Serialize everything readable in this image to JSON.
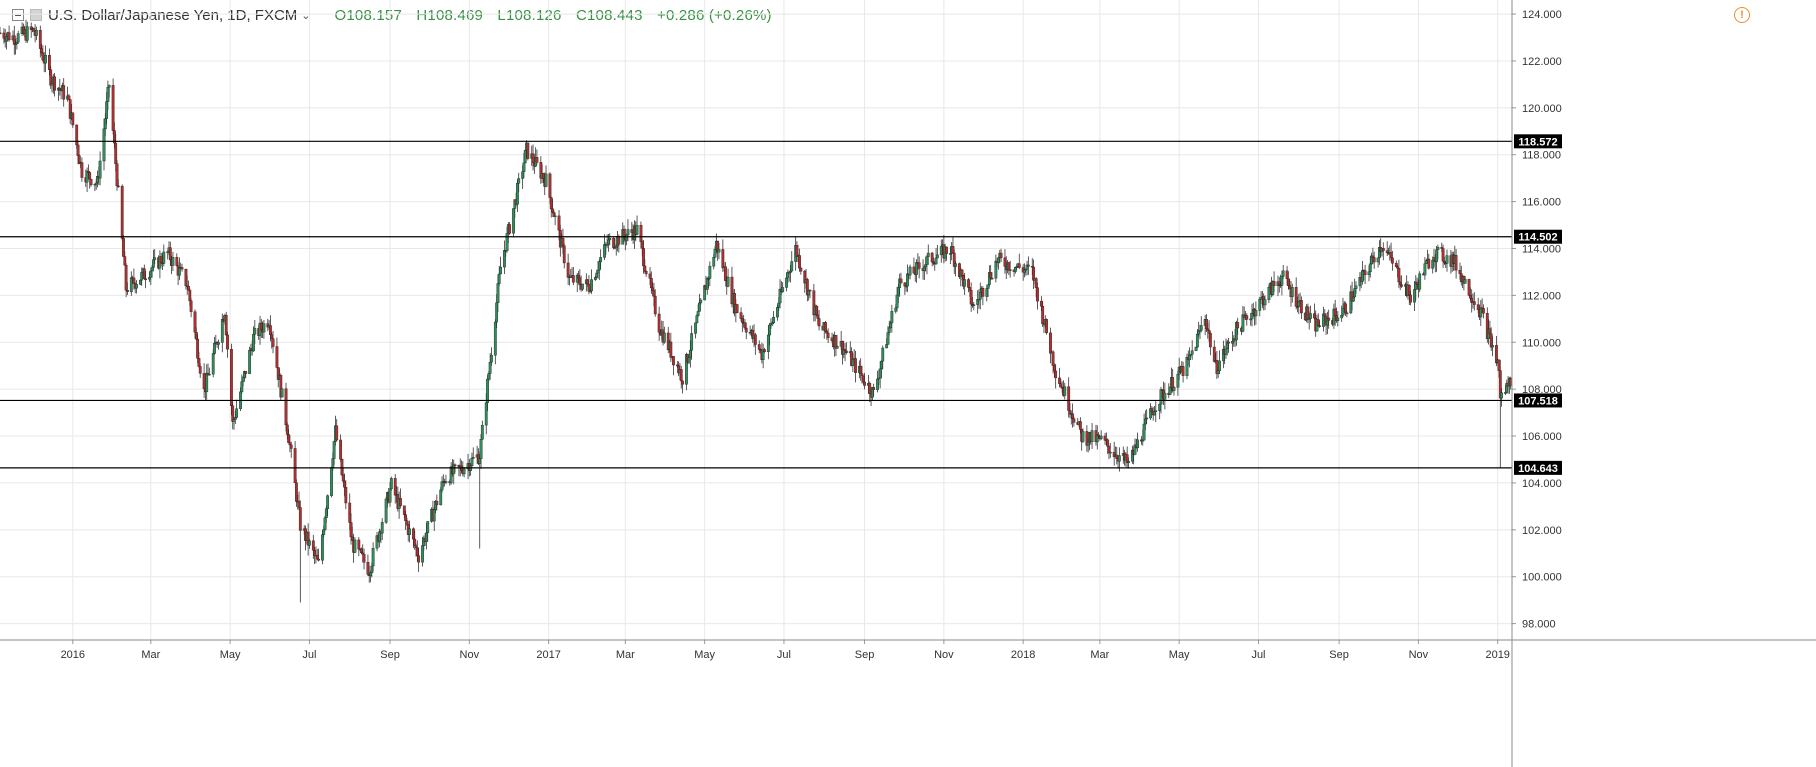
{
  "header": {
    "symbol": "U.S. Dollar/Japanese Yen, 1D, FXCM",
    "open": "O108.157",
    "high": "H108.469",
    "low": "L108.126",
    "close": "C108.443",
    "change": "+0.286 (+0.26%)"
  },
  "icons": {
    "collapse": "minus-square-icon",
    "series": "grey-square-icon",
    "chevron": "chevron-down-icon",
    "alert": "warning-circle-icon"
  },
  "colors": {
    "up": "#2f8f5b",
    "down": "#b32f2f",
    "wick": "#333333",
    "level_line": "#000000",
    "grid": "#e8e8e8",
    "ohlc_text": "#3a9144",
    "alert": "#f08c2a"
  },
  "chart_data": {
    "type": "candlestick",
    "title": "U.S. Dollar/Japanese Yen, 1D, FXCM",
    "ylim": [
      97.3,
      124.6
    ],
    "x_range": [
      "2015-11-06",
      "2019-01-12"
    ],
    "grid": true,
    "yticks": [
      "98.000",
      "100.000",
      "102.000",
      "104.000",
      "106.000",
      "108.000",
      "110.000",
      "112.000",
      "114.000",
      "116.000",
      "118.000",
      "120.000",
      "122.000",
      "124.000"
    ],
    "xticks": [
      {
        "label": "2016",
        "date": "2016-01-01"
      },
      {
        "label": "Mar",
        "date": "2016-03-01"
      },
      {
        "label": "May",
        "date": "2016-05-01"
      },
      {
        "label": "Jul",
        "date": "2016-07-01"
      },
      {
        "label": "Sep",
        "date": "2016-09-01"
      },
      {
        "label": "Nov",
        "date": "2016-11-01"
      },
      {
        "label": "2017",
        "date": "2017-01-01"
      },
      {
        "label": "Mar",
        "date": "2017-03-01"
      },
      {
        "label": "May",
        "date": "2017-05-01"
      },
      {
        "label": "Jul",
        "date": "2017-07-01"
      },
      {
        "label": "Sep",
        "date": "2017-09-01"
      },
      {
        "label": "Nov",
        "date": "2017-11-01"
      },
      {
        "label": "2018",
        "date": "2018-01-01"
      },
      {
        "label": "Mar",
        "date": "2018-03-01"
      },
      {
        "label": "May",
        "date": "2018-05-01"
      },
      {
        "label": "Jul",
        "date": "2018-07-01"
      },
      {
        "label": "Sep",
        "date": "2018-09-01"
      },
      {
        "label": "Nov",
        "date": "2018-11-01"
      },
      {
        "label": "2019",
        "date": "2019-01-01"
      }
    ],
    "levels": [
      {
        "value": 118.572,
        "label": "118.572"
      },
      {
        "value": 114.502,
        "label": "114.502"
      },
      {
        "value": 107.518,
        "label": "107.518"
      },
      {
        "value": 104.643,
        "label": "104.643"
      }
    ],
    "close_path": [
      {
        "date": "2015-11-06",
        "close": 123.2
      },
      {
        "date": "2015-11-18",
        "close": 123.0
      },
      {
        "date": "2015-12-02",
        "close": 123.3
      },
      {
        "date": "2015-12-15",
        "close": 121.3
      },
      {
        "date": "2015-12-28",
        "close": 120.4
      },
      {
        "date": "2016-01-08",
        "close": 117.3
      },
      {
        "date": "2016-01-20",
        "close": 116.8
      },
      {
        "date": "2016-01-29",
        "close": 121.0
      },
      {
        "date": "2016-02-11",
        "close": 112.3
      },
      {
        "date": "2016-02-25",
        "close": 112.9
      },
      {
        "date": "2016-03-14",
        "close": 113.8
      },
      {
        "date": "2016-03-29",
        "close": 112.5
      },
      {
        "date": "2016-04-11",
        "close": 107.9
      },
      {
        "date": "2016-04-27",
        "close": 111.4
      },
      {
        "date": "2016-05-03",
        "close": 106.5
      },
      {
        "date": "2016-05-19",
        "close": 110.2
      },
      {
        "date": "2016-05-31",
        "close": 111.0
      },
      {
        "date": "2016-06-15",
        "close": 106.0
      },
      {
        "date": "2016-06-24",
        "close": 102.2
      },
      {
        "date": "2016-07-08",
        "close": 100.5
      },
      {
        "date": "2016-07-21",
        "close": 106.2
      },
      {
        "date": "2016-08-03",
        "close": 101.4
      },
      {
        "date": "2016-08-16",
        "close": 100.3
      },
      {
        "date": "2016-09-02",
        "close": 103.9
      },
      {
        "date": "2016-09-23",
        "close": 100.9
      },
      {
        "date": "2016-10-13",
        "close": 104.2
      },
      {
        "date": "2016-10-28",
        "close": 104.7
      },
      {
        "date": "2016-11-09",
        "close": 105.2
      },
      {
        "date": "2016-11-25",
        "close": 113.2
      },
      {
        "date": "2016-12-15",
        "close": 118.2
      },
      {
        "date": "2016-12-30",
        "close": 116.9
      },
      {
        "date": "2017-01-17",
        "close": 112.7
      },
      {
        "date": "2017-02-01",
        "close": 112.4
      },
      {
        "date": "2017-02-15",
        "close": 114.2
      },
      {
        "date": "2017-03-10",
        "close": 114.8
      },
      {
        "date": "2017-03-27",
        "close": 110.7
      },
      {
        "date": "2017-04-14",
        "close": 108.5
      },
      {
        "date": "2017-05-10",
        "close": 114.2
      },
      {
        "date": "2017-05-24",
        "close": 111.6
      },
      {
        "date": "2017-06-14",
        "close": 109.5
      },
      {
        "date": "2017-07-10",
        "close": 114.0
      },
      {
        "date": "2017-07-28",
        "close": 110.7
      },
      {
        "date": "2017-08-15",
        "close": 109.8
      },
      {
        "date": "2017-09-08",
        "close": 107.8
      },
      {
        "date": "2017-09-28",
        "close": 112.5
      },
      {
        "date": "2017-10-20",
        "close": 113.5
      },
      {
        "date": "2017-11-06",
        "close": 114.0
      },
      {
        "date": "2017-11-24",
        "close": 111.5
      },
      {
        "date": "2017-12-12",
        "close": 113.5
      },
      {
        "date": "2018-01-08",
        "close": 113.0
      },
      {
        "date": "2018-01-26",
        "close": 108.8
      },
      {
        "date": "2018-02-15",
        "close": 106.0
      },
      {
        "date": "2018-03-02",
        "close": 105.8
      },
      {
        "date": "2018-03-23",
        "close": 104.8
      },
      {
        "date": "2018-04-13",
        "close": 107.4
      },
      {
        "date": "2018-05-08",
        "close": 109.1
      },
      {
        "date": "2018-05-21",
        "close": 111.1
      },
      {
        "date": "2018-05-29",
        "close": 108.9
      },
      {
        "date": "2018-06-15",
        "close": 110.6
      },
      {
        "date": "2018-07-19",
        "close": 112.8
      },
      {
        "date": "2018-08-13",
        "close": 110.7
      },
      {
        "date": "2018-09-04",
        "close": 111.3
      },
      {
        "date": "2018-10-04",
        "close": 114.2
      },
      {
        "date": "2018-10-26",
        "close": 111.9
      },
      {
        "date": "2018-11-12",
        "close": 113.8
      },
      {
        "date": "2018-11-28",
        "close": 113.5
      },
      {
        "date": "2018-12-20",
        "close": 111.2
      },
      {
        "date": "2019-01-02",
        "close": 108.9
      },
      {
        "date": "2019-01-03",
        "close": 107.6
      },
      {
        "date": "2019-01-11",
        "close": 108.4
      }
    ],
    "annotations": [
      {
        "date": "2019-01-03",
        "low": 104.643,
        "note": "flash-crash wick"
      },
      {
        "date": "2016-06-24",
        "low": 98.9,
        "note": "long lower wick"
      },
      {
        "date": "2016-11-09",
        "low": 101.2,
        "note": "long lower wick"
      }
    ]
  }
}
